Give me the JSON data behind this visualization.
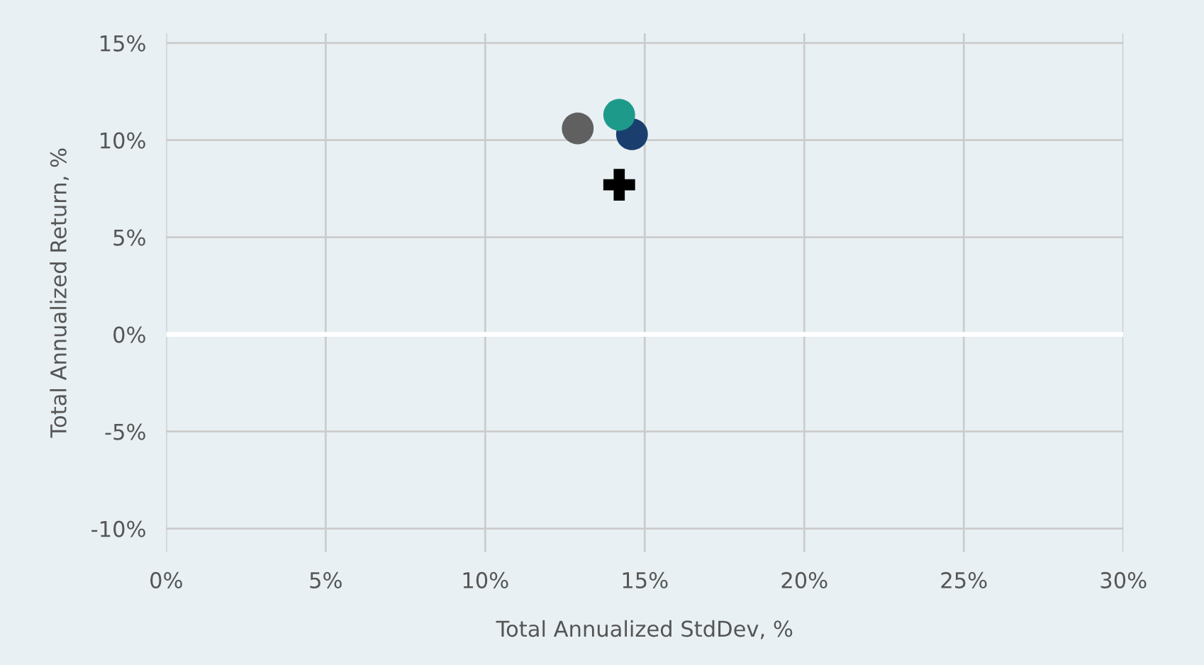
{
  "chart_data": {
    "type": "scatter",
    "xlabel": "Total Annualized StdDev, %",
    "ylabel": "Total Annualized Return, %",
    "series": [
      {
        "color": "#606060",
        "x": [
          12.9
        ],
        "values": [
          10.6
        ],
        "marker": "circle"
      },
      {
        "color": "#1a3f6f",
        "x": [
          14.6
        ],
        "values": [
          10.3
        ],
        "marker": "circle"
      },
      {
        "color": "#1e9a8a",
        "x": [
          14.2
        ],
        "values": [
          11.3
        ],
        "marker": "circle"
      },
      {
        "color": "#000000",
        "x": [
          14.2
        ],
        "values": [
          7.7
        ],
        "marker": "cross"
      }
    ],
    "xlim": [
      0,
      30
    ],
    "ylim": [
      -11.2,
      15.5
    ],
    "xticks": [
      {
        "value": 0,
        "label": "0%"
      },
      {
        "value": 5,
        "label": "5%"
      },
      {
        "value": 10,
        "label": "10%"
      },
      {
        "value": 15,
        "label": "15%"
      },
      {
        "value": 20,
        "label": "20%"
      },
      {
        "value": 25,
        "label": "25%"
      },
      {
        "value": 30,
        "label": "30%"
      }
    ],
    "yticks": [
      {
        "value": -10,
        "label": "-10%"
      },
      {
        "value": -5,
        "label": "-5%"
      },
      {
        "value": 0,
        "label": "0%"
      },
      {
        "value": 5,
        "label": "5%"
      },
      {
        "value": 10,
        "label": "10%"
      },
      {
        "value": 15,
        "label": "15%"
      }
    ],
    "ref_lines": [
      {
        "axis": "y",
        "value": 0,
        "color": "#ffffff"
      }
    ],
    "grid": true,
    "legend": false
  }
}
